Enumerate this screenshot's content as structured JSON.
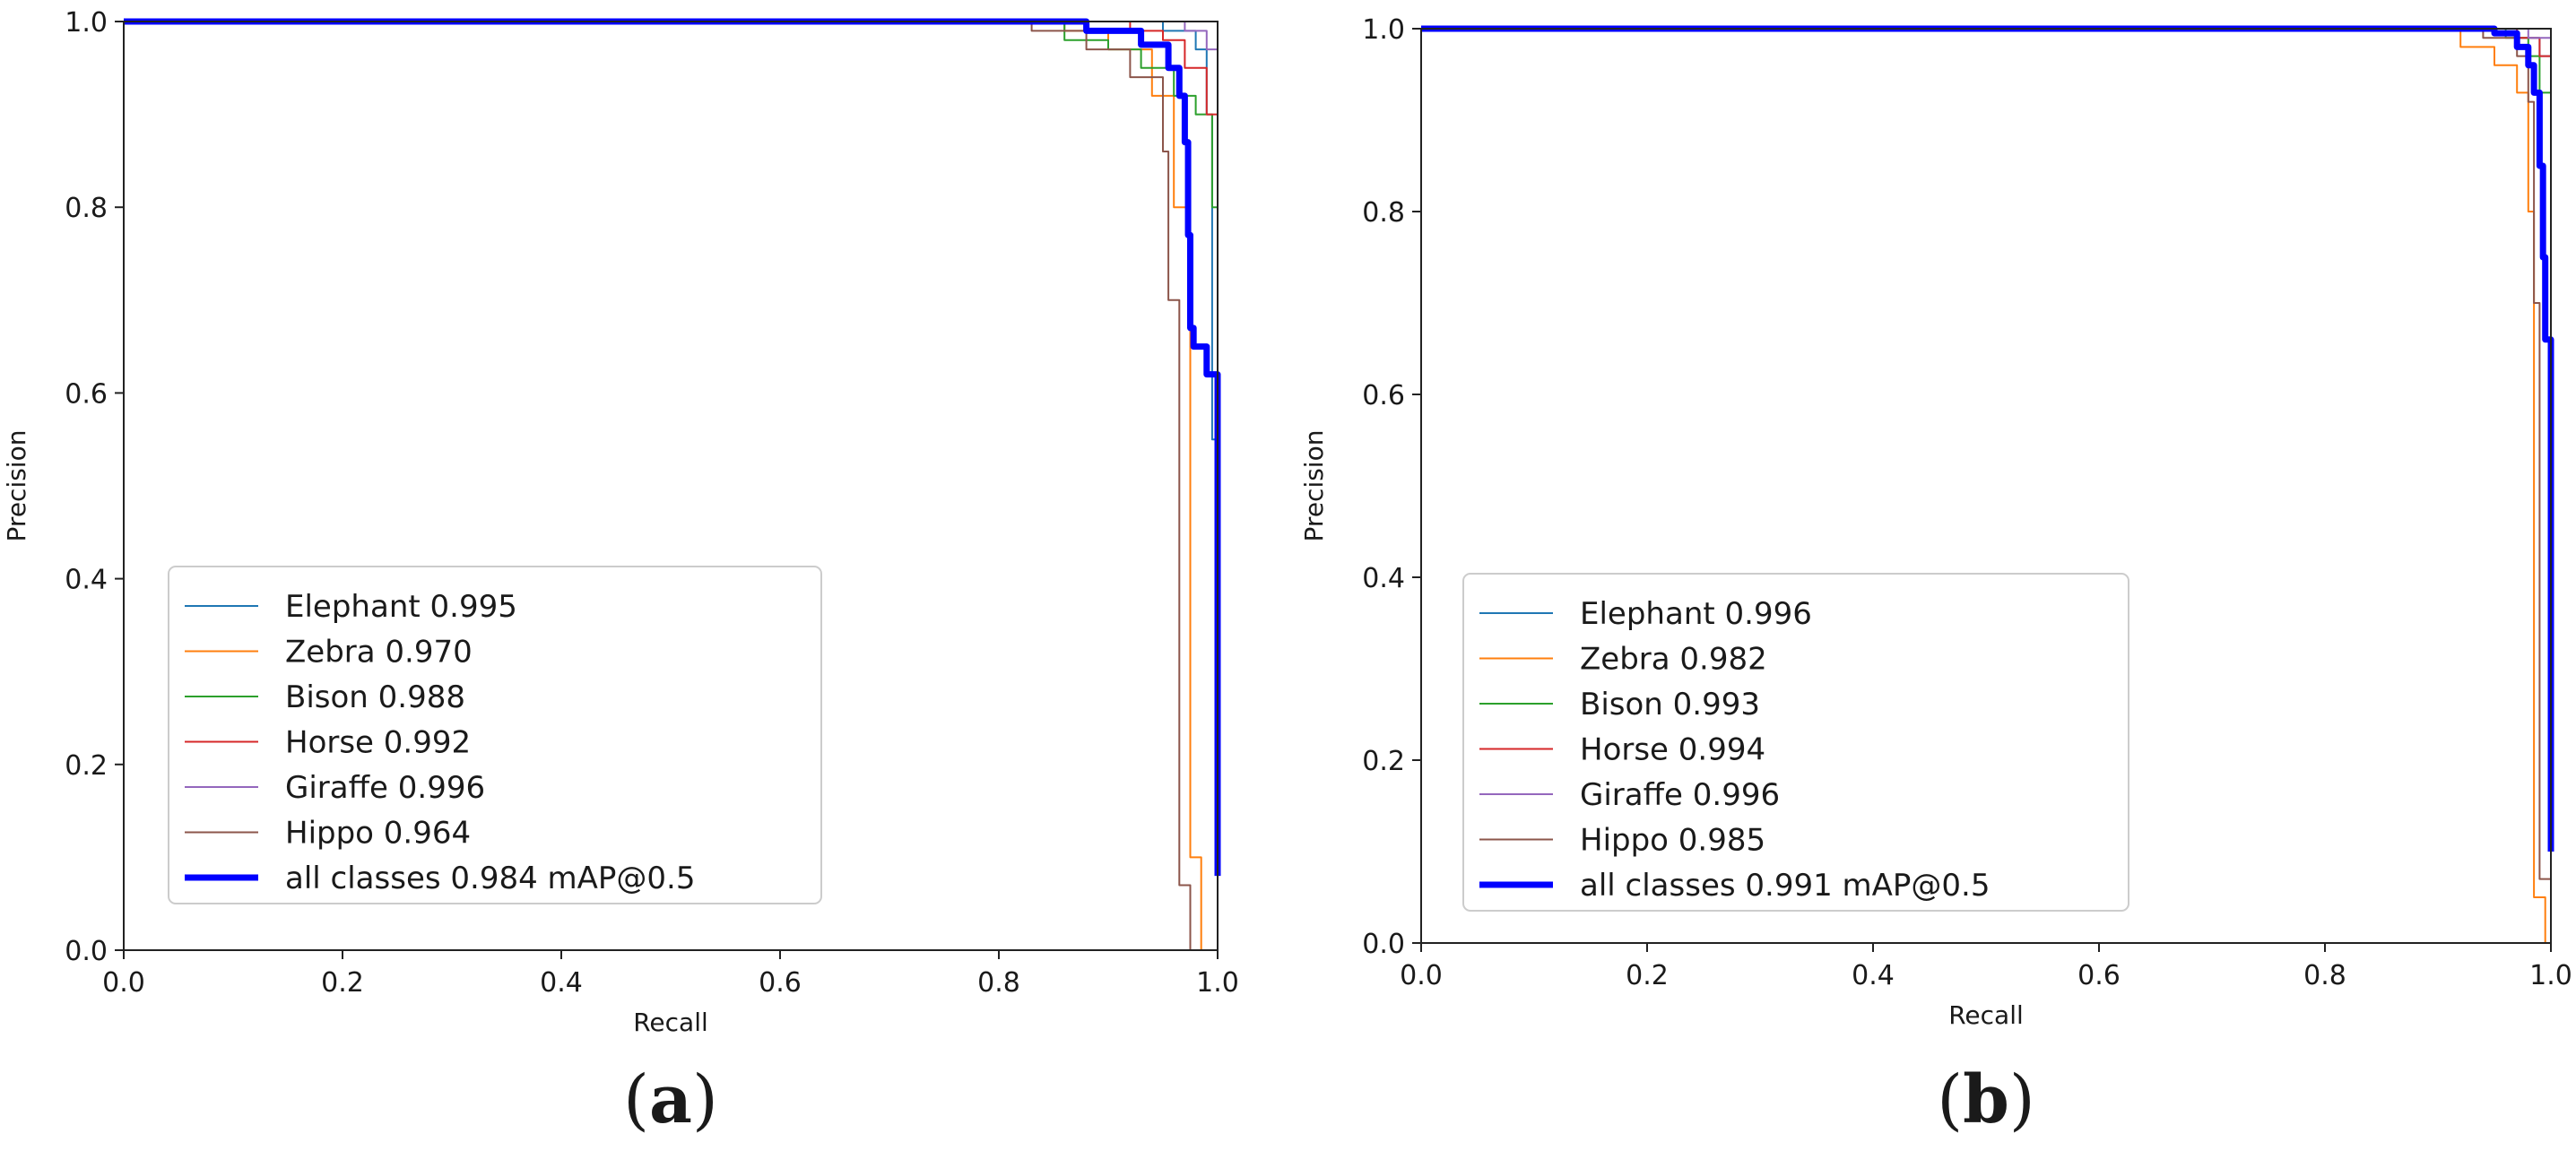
{
  "chart_data": [
    {
      "type": "line",
      "panel": "(a)",
      "xlabel": "Recall",
      "ylabel": "Precision",
      "xlim": [
        0,
        1
      ],
      "ylim": [
        0,
        1
      ],
      "xticks": [
        "0.0",
        "0.2",
        "0.4",
        "0.6",
        "0.8",
        "1.0"
      ],
      "yticks": [
        "0.0",
        "0.2",
        "0.4",
        "0.6",
        "0.8",
        "1.0"
      ],
      "grid": false,
      "legend_position": "lower-left",
      "series": [
        {
          "name": "Elephant 0.995",
          "color": "#1f77b4",
          "width": 2,
          "points": [
            [
              0,
              1
            ],
            [
              0.9,
              1
            ],
            [
              0.95,
              0.99
            ],
            [
              0.98,
              0.97
            ],
            [
              0.99,
              0.9
            ],
            [
              0.995,
              0.55
            ],
            [
              1.0,
              0.1
            ]
          ]
        },
        {
          "name": "Zebra 0.970",
          "color": "#ff7f0e",
          "width": 2,
          "points": [
            [
              0,
              1
            ],
            [
              0.8,
              1
            ],
            [
              0.86,
              0.99
            ],
            [
              0.9,
              0.97
            ],
            [
              0.94,
              0.92
            ],
            [
              0.96,
              0.8
            ],
            [
              0.975,
              0.55
            ],
            [
              0.975,
              0.1
            ],
            [
              0.985,
              0
            ]
          ]
        },
        {
          "name": "Bison 0.988",
          "color": "#2ca02c",
          "width": 2,
          "points": [
            [
              0,
              1
            ],
            [
              0.82,
              1
            ],
            [
              0.86,
              0.98
            ],
            [
              0.9,
              0.97
            ],
            [
              0.93,
              0.95
            ],
            [
              0.96,
              0.92
            ],
            [
              0.98,
              0.9
            ],
            [
              0.995,
              0.87
            ],
            [
              0.995,
              0.8
            ],
            [
              1.0,
              0.78
            ]
          ]
        },
        {
          "name": "Horse 0.992",
          "color": "#d62728",
          "width": 2,
          "points": [
            [
              0,
              1
            ],
            [
              0.88,
              1
            ],
            [
              0.92,
              0.99
            ],
            [
              0.95,
              0.98
            ],
            [
              0.97,
              0.95
            ],
            [
              0.99,
              0.9
            ],
            [
              1.0,
              0.86
            ],
            [
              1.0,
              0.3
            ]
          ]
        },
        {
          "name": "Giraffe 0.996",
          "color": "#9467bd",
          "width": 2,
          "points": [
            [
              0,
              1
            ],
            [
              0.93,
              1
            ],
            [
              0.97,
              0.99
            ],
            [
              0.99,
              0.97
            ],
            [
              1.0,
              0.95
            ],
            [
              1.0,
              0.6
            ]
          ]
        },
        {
          "name": "Hippo 0.964",
          "color": "#8c564b",
          "width": 2,
          "points": [
            [
              0,
              1
            ],
            [
              0.79,
              1
            ],
            [
              0.83,
              0.99
            ],
            [
              0.88,
              0.97
            ],
            [
              0.92,
              0.94
            ],
            [
              0.95,
              0.86
            ],
            [
              0.955,
              0.7
            ],
            [
              0.965,
              0.7
            ],
            [
              0.965,
              0.07
            ],
            [
              0.975,
              0
            ]
          ]
        },
        {
          "name": "all classes 0.984 mAP@0.5",
          "color": "#0000ff",
          "width": 7,
          "points": [
            [
              0,
              1
            ],
            [
              0.8,
              1
            ],
            [
              0.88,
              0.99
            ],
            [
              0.93,
              0.975
            ],
            [
              0.955,
              0.95
            ],
            [
              0.965,
              0.92
            ],
            [
              0.97,
              0.87
            ],
            [
              0.973,
              0.77
            ],
            [
              0.975,
              0.67
            ],
            [
              0.978,
              0.65
            ],
            [
              0.99,
              0.62
            ],
            [
              1.0,
              0.61
            ],
            [
              1.0,
              0.08
            ]
          ]
        }
      ]
    },
    {
      "type": "line",
      "panel": "(b)",
      "xlabel": "Recall",
      "ylabel": "Precision",
      "xlim": [
        0,
        1
      ],
      "ylim": [
        0,
        1
      ],
      "xticks": [
        "0.0",
        "0.2",
        "0.4",
        "0.6",
        "0.8",
        "1.0"
      ],
      "yticks": [
        "0.0",
        "0.2",
        "0.4",
        "0.6",
        "0.8",
        "1.0"
      ],
      "grid": false,
      "legend_position": "lower-left",
      "series": [
        {
          "name": "Elephant 0.996",
          "color": "#1f77b4",
          "width": 2,
          "points": [
            [
              0,
              1
            ],
            [
              0.93,
              1
            ],
            [
              0.97,
              0.99
            ],
            [
              0.99,
              0.97
            ],
            [
              1.0,
              0.95
            ],
            [
              1.0,
              0.2
            ]
          ]
        },
        {
          "name": "Zebra 0.982",
          "color": "#ff7f0e",
          "width": 2,
          "points": [
            [
              0,
              1
            ],
            [
              0.9,
              1
            ],
            [
              0.92,
              0.98
            ],
            [
              0.95,
              0.96
            ],
            [
              0.97,
              0.93
            ],
            [
              0.98,
              0.8
            ],
            [
              0.985,
              0.5
            ],
            [
              0.985,
              0.05
            ],
            [
              0.995,
              0
            ]
          ]
        },
        {
          "name": "Bison 0.993",
          "color": "#2ca02c",
          "width": 2,
          "points": [
            [
              0,
              1
            ],
            [
              0.92,
              1
            ],
            [
              0.96,
              0.99
            ],
            [
              0.98,
              0.97
            ],
            [
              0.99,
              0.93
            ],
            [
              1.0,
              0.89
            ],
            [
              1.0,
              0.3
            ]
          ]
        },
        {
          "name": "Horse 0.994",
          "color": "#d62728",
          "width": 2,
          "points": [
            [
              0,
              1
            ],
            [
              0.93,
              1
            ],
            [
              0.97,
              0.99
            ],
            [
              0.99,
              0.97
            ],
            [
              1.0,
              0.93
            ],
            [
              1.0,
              0.4
            ]
          ]
        },
        {
          "name": "Giraffe 0.996",
          "color": "#9467bd",
          "width": 2,
          "points": [
            [
              0,
              1
            ],
            [
              0.95,
              1
            ],
            [
              0.98,
              0.99
            ],
            [
              1.0,
              0.97
            ],
            [
              1.0,
              0.6
            ]
          ]
        },
        {
          "name": "Hippo 0.985",
          "color": "#8c564b",
          "width": 2,
          "points": [
            [
              0,
              1
            ],
            [
              0.91,
              1
            ],
            [
              0.94,
              0.99
            ],
            [
              0.97,
              0.97
            ],
            [
              0.98,
              0.92
            ],
            [
              0.985,
              0.7
            ],
            [
              0.99,
              0.07
            ],
            [
              1.0,
              0
            ]
          ]
        },
        {
          "name": "all classes 0.991 mAP@0.5",
          "color": "#0000ff",
          "width": 7,
          "points": [
            [
              0,
              1
            ],
            [
              0.9,
              1
            ],
            [
              0.95,
              0.995
            ],
            [
              0.97,
              0.98
            ],
            [
              0.98,
              0.96
            ],
            [
              0.985,
              0.93
            ],
            [
              0.99,
              0.85
            ],
            [
              0.993,
              0.75
            ],
            [
              0.995,
              0.66
            ],
            [
              1.0,
              0.64
            ],
            [
              1.0,
              0.1
            ]
          ]
        }
      ]
    }
  ]
}
